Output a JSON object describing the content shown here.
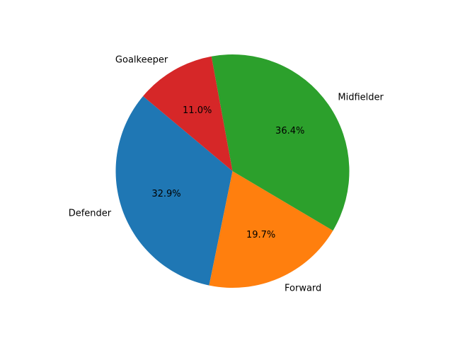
{
  "chart_data": {
    "type": "pie",
    "title": "",
    "start_angle_deg": 140,
    "direction": "counterclockwise",
    "slices": [
      {
        "label": "Defender",
        "value": 32.9,
        "pct_label": "32.9%",
        "color": "#1f77b4"
      },
      {
        "label": "Forward",
        "value": 19.7,
        "pct_label": "19.7%",
        "color": "#ff7f0e"
      },
      {
        "label": "Midfielder",
        "value": 36.4,
        "pct_label": "36.4%",
        "color": "#2ca02c"
      },
      {
        "label": "Goalkeeper",
        "value": 11.0,
        "pct_label": "11.0%",
        "color": "#d62728"
      }
    ]
  }
}
